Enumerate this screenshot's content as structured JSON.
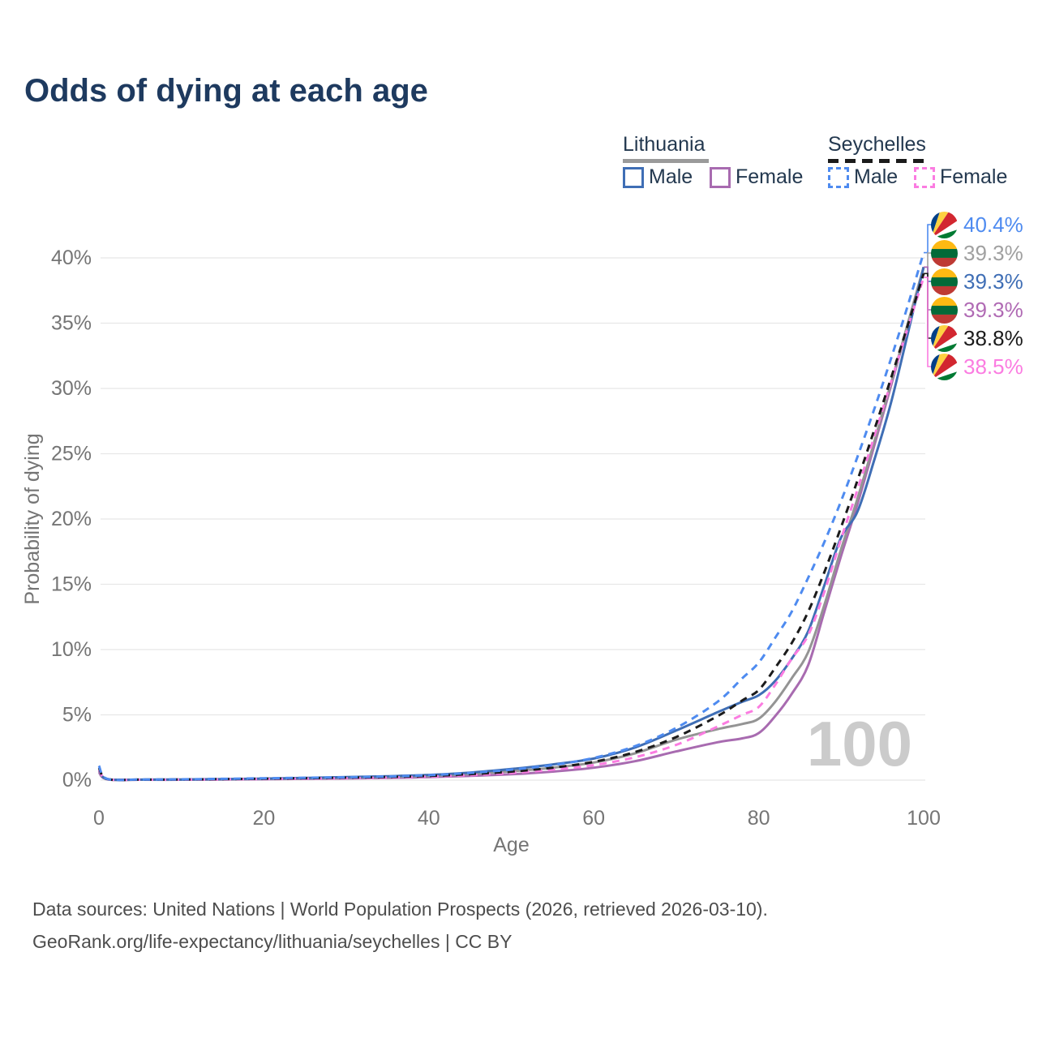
{
  "title": "Odds of dying at each age",
  "legend": {
    "groups": [
      {
        "name": "Lithuania",
        "line_style": "solid",
        "line_color": "#9a9a9a",
        "items": [
          {
            "label": "Male",
            "color": "#3f6eb5",
            "dashed": false
          },
          {
            "label": "Female",
            "color": "#a86bb0",
            "dashed": false
          }
        ]
      },
      {
        "name": "Seychelles",
        "line_style": "dashed",
        "line_color": "#1b1b1b",
        "items": [
          {
            "label": "Male",
            "color": "#4e8bf0",
            "dashed": true
          },
          {
            "label": "Female",
            "color": "#fb7ce1",
            "dashed": true
          }
        ]
      }
    ]
  },
  "watermark": "100",
  "end_labels": [
    {
      "text": "40.4%",
      "flag": "seychelles",
      "color": "#4e8bf0",
      "pct": 40.4
    },
    {
      "text": "39.3%",
      "flag": "lithuania",
      "color": "#a0a0a0",
      "pct": 39.3
    },
    {
      "text": "39.3%",
      "flag": "lithuania",
      "color": "#3f6eb5",
      "pct": 39.3
    },
    {
      "text": "39.3%",
      "flag": "lithuania",
      "color": "#b06ab4",
      "pct": 39.3
    },
    {
      "text": "38.8%",
      "flag": "seychelles",
      "color": "#1b1b1b",
      "pct": 38.8
    },
    {
      "text": "38.5%",
      "flag": "seychelles",
      "color": "#fb7ce1",
      "pct": 38.5
    }
  ],
  "footer": {
    "line1": "Data sources: United Nations | World Population Prospects (2026, retrieved 2026-03-10).",
    "line2": "GeoRank.org/life-expectancy/lithuania/seychelles | CC BY"
  },
  "chart_data": {
    "type": "line",
    "title": "Odds of dying at each age",
    "xlabel": "Age",
    "ylabel": "Probability of dying",
    "xlim": [
      0,
      100
    ],
    "ylim": [
      0,
      40
    ],
    "x_ticks": [
      0,
      20,
      40,
      60,
      80,
      100
    ],
    "y_ticks": [
      0,
      5,
      10,
      15,
      20,
      25,
      30,
      35,
      40
    ],
    "y_tick_suffix": "%",
    "grid": "horizontal",
    "x": [
      0,
      1,
      5,
      10,
      15,
      20,
      25,
      30,
      35,
      40,
      45,
      50,
      55,
      60,
      65,
      70,
      75,
      78,
      80,
      82,
      84,
      86,
      88,
      90,
      92,
      94,
      96,
      98,
      100
    ],
    "series": [
      {
        "name": "Lithuania Female",
        "color": "#a86bb0",
        "dashed": false,
        "end_label": "39.3%",
        "values": [
          0.6,
          0.06,
          0.03,
          0.03,
          0.05,
          0.07,
          0.1,
          0.13,
          0.17,
          0.23,
          0.32,
          0.45,
          0.65,
          0.95,
          1.45,
          2.2,
          2.9,
          3.2,
          3.6,
          4.9,
          6.6,
          8.8,
          13.0,
          17.2,
          21.2,
          25.6,
          30.1,
          34.7,
          39.3
        ]
      },
      {
        "name": "Lithuania Both sexes",
        "color": "#949494",
        "dashed": false,
        "end_label": "39.3%",
        "values": [
          0.7,
          0.07,
          0.03,
          0.04,
          0.06,
          0.1,
          0.14,
          0.19,
          0.25,
          0.33,
          0.47,
          0.68,
          0.95,
          1.35,
          2.05,
          3.1,
          3.9,
          4.3,
          4.7,
          6.0,
          7.8,
          9.8,
          13.5,
          17.7,
          21.6,
          25.9,
          30.3,
          34.8,
          39.3
        ]
      },
      {
        "name": "Lithuania Male",
        "color": "#3f6eb5",
        "dashed": false,
        "end_label": "39.3%",
        "values": [
          0.75,
          0.08,
          0.04,
          0.05,
          0.08,
          0.12,
          0.17,
          0.23,
          0.3,
          0.4,
          0.58,
          0.85,
          1.2,
          1.65,
          2.5,
          3.8,
          5.2,
          6.0,
          6.5,
          7.6,
          9.3,
          11.4,
          15.0,
          18.6,
          20.6,
          24.5,
          28.8,
          34.0,
          39.3
        ]
      },
      {
        "name": "Seychelles Female",
        "color": "#fb7ce1",
        "dashed": true,
        "end_label": "38.5%",
        "values": [
          0.8,
          0.08,
          0.03,
          0.04,
          0.06,
          0.09,
          0.12,
          0.15,
          0.2,
          0.27,
          0.38,
          0.55,
          0.8,
          1.15,
          1.75,
          2.7,
          4.1,
          5.0,
          5.6,
          7.3,
          9.3,
          11.1,
          14.5,
          18.5,
          22.3,
          26.3,
          30.4,
          34.5,
          38.5
        ]
      },
      {
        "name": "Seychelles Both sexes",
        "color": "#1b1b1b",
        "dashed": true,
        "end_label": "38.8%",
        "values": [
          0.95,
          0.09,
          0.04,
          0.05,
          0.08,
          0.11,
          0.15,
          0.19,
          0.24,
          0.32,
          0.46,
          0.65,
          0.95,
          1.4,
          2.15,
          3.3,
          4.9,
          6.1,
          6.9,
          8.6,
          10.5,
          12.9,
          16.0,
          19.4,
          23.0,
          26.8,
          30.7,
          34.7,
          38.8
        ]
      },
      {
        "name": "Seychelles Male",
        "color": "#4e8bf0",
        "dashed": true,
        "end_label": "40.4%",
        "values": [
          1.1,
          0.1,
          0.05,
          0.06,
          0.1,
          0.14,
          0.18,
          0.22,
          0.28,
          0.38,
          0.55,
          0.8,
          1.15,
          1.7,
          2.6,
          4.0,
          6.0,
          7.8,
          9.0,
          10.9,
          12.9,
          15.5,
          18.3,
          21.4,
          24.8,
          28.4,
          32.2,
          36.2,
          40.4
        ]
      }
    ]
  }
}
